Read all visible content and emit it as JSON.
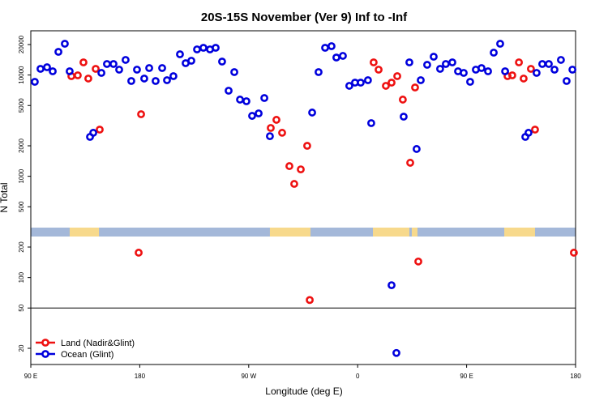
{
  "chart_data": {
    "type": "scatter",
    "title": "20S-15S November (Ver 9)   Inf to -Inf",
    "x_label": "Longitude (deg E)",
    "y_label": "N Total",
    "xlim": [
      90,
      540
    ],
    "xticks": [
      {
        "value": 90,
        "label": "90 E"
      },
      {
        "value": 180,
        "label": "180"
      },
      {
        "value": 270,
        "label": "90 W"
      },
      {
        "value": 360,
        "label": "0"
      },
      {
        "value": 450,
        "label": "90 E"
      },
      {
        "value": 540,
        "label": "180"
      }
    ],
    "ylim": [
      13.84,
      27350
    ],
    "y_log": true,
    "yticks": [
      20,
      50,
      100,
      200,
      500,
      1000,
      2000,
      5000,
      10000,
      20000
    ],
    "reference_line": 50,
    "legend": "bottom-left",
    "surface_strip": {
      "ocean_color": "#a4b8d9",
      "land_color": "#f7d98c",
      "land_segments": [
        [
          122.1,
          146.3
        ],
        [
          287.5,
          321.0
        ],
        [
          372.6,
          402.7
        ],
        [
          404.7,
          409.4
        ],
        [
          481.1,
          506.5
        ]
      ]
    },
    "series": [
      {
        "name": "Land (Nadir&Glint)",
        "color": "#ee1111",
        "x": [
          123.5,
          128.8,
          133.5,
          137.5,
          143.6,
          146.9,
          181.1,
          179.1,
          288.2,
          292.9,
          297.6,
          303.6,
          307.6,
          313.0,
          318.3,
          320.4,
          373.2,
          377.3,
          383.3,
          388.0,
          392.7,
          397.3,
          403.4,
          407.4,
          410.1,
          483.8,
          487.7,
          493.2,
          497.1,
          503.1,
          506.5,
          538.6
        ],
        "values": [
          9750,
          9930,
          13330,
          9230,
          11510,
          2890,
          4100,
          176,
          3000,
          3610,
          2690,
          1260,
          841,
          1170,
          2000,
          60,
          13330,
          11300,
          7820,
          8410,
          9750,
          5720,
          1360,
          7530,
          144,
          9750,
          9930,
          13330,
          9230,
          11510,
          2890,
          176
        ]
      },
      {
        "name": "Ocean (Glint)",
        "color": "#0000dd",
        "x": [
          93.3,
          98.0,
          103.4,
          108.1,
          112.8,
          118.1,
          122.1,
          138.9,
          141.6,
          148.3,
          152.9,
          158.3,
          163.0,
          168.3,
          173.0,
          177.7,
          183.7,
          187.8,
          193.1,
          198.5,
          202.5,
          207.8,
          213.2,
          217.9,
          222.6,
          227.3,
          232.6,
          238.0,
          242.7,
          248.0,
          253.4,
          258.1,
          262.8,
          268.1,
          272.8,
          278.2,
          282.9,
          287.5,
          322.4,
          327.7,
          333.1,
          338.4,
          342.4,
          347.8,
          353.1,
          357.8,
          362.5,
          368.5,
          371.2,
          388.0,
          392.0,
          398.0,
          402.7,
          408.7,
          412.1,
          417.4,
          422.8,
          428.1,
          432.8,
          438.2,
          442.9,
          447.6,
          452.9,
          457.6,
          462.3,
          467.7,
          472.4,
          477.7,
          481.8,
          498.5,
          501.1,
          507.8,
          512.5,
          517.9,
          522.6,
          527.9,
          532.6,
          537.4
        ],
        "values": [
          8570,
          11510,
          11940,
          10890,
          16940,
          20370,
          10890,
          2450,
          2690,
          10500,
          12850,
          12850,
          11300,
          14100,
          8730,
          11300,
          9230,
          11720,
          8730,
          11720,
          8890,
          9750,
          16030,
          13090,
          13840,
          17910,
          18580,
          17910,
          18580,
          13580,
          7000,
          10690,
          5720,
          5510,
          3950,
          4180,
          5930,
          2490,
          4260,
          10690,
          18580,
          19280,
          14890,
          15460,
          7820,
          8410,
          8410,
          8890,
          3350,
          84,
          18,
          3880,
          13330,
          1860,
          8890,
          12620,
          15170,
          11510,
          12850,
          13330,
          10890,
          10500,
          8570,
          11300,
          11720,
          10890,
          16640,
          20370,
          10890,
          2450,
          2690,
          10500,
          12850,
          12850,
          11300,
          14100,
          8730,
          11300
        ]
      }
    ]
  }
}
